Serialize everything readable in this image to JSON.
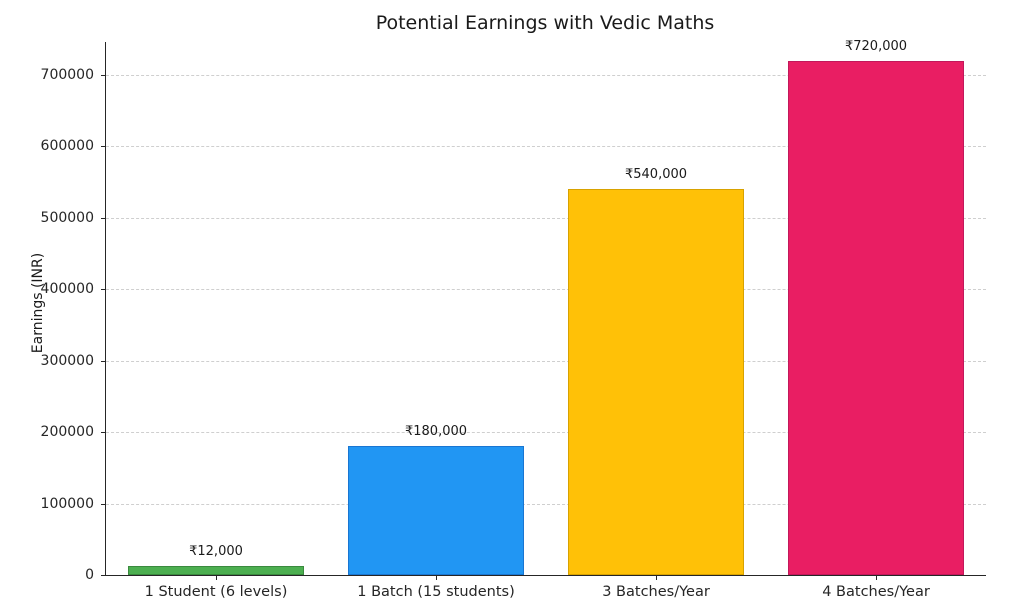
{
  "chart_data": {
    "type": "bar",
    "title": "Potential Earnings with Vedic Maths",
    "xlabel": "",
    "ylabel": "Earnings (INR)",
    "categories": [
      "1 Student (6 levels)",
      "1 Batch (15 students)",
      "3 Batches/Year",
      "4 Batches/Year"
    ],
    "values": [
      12000,
      180000,
      540000,
      720000
    ],
    "value_labels": [
      "₹12,000",
      "₹180,000",
      "₹540,000",
      "₹720,000"
    ],
    "bar_colors": [
      "#4caf50",
      "#2196f3",
      "#ffc107",
      "#e91e63"
    ],
    "bar_edge_colors": [
      "#3a8a3e",
      "#1976d2",
      "#d8a200",
      "#c2185b"
    ],
    "ylim": [
      0,
      746000
    ],
    "yticks": [
      0,
      100000,
      200000,
      300000,
      400000,
      500000,
      600000,
      700000
    ],
    "grid": true,
    "grid_style": "dashed",
    "legend": "none",
    "bar_width_fraction": 0.8
  }
}
